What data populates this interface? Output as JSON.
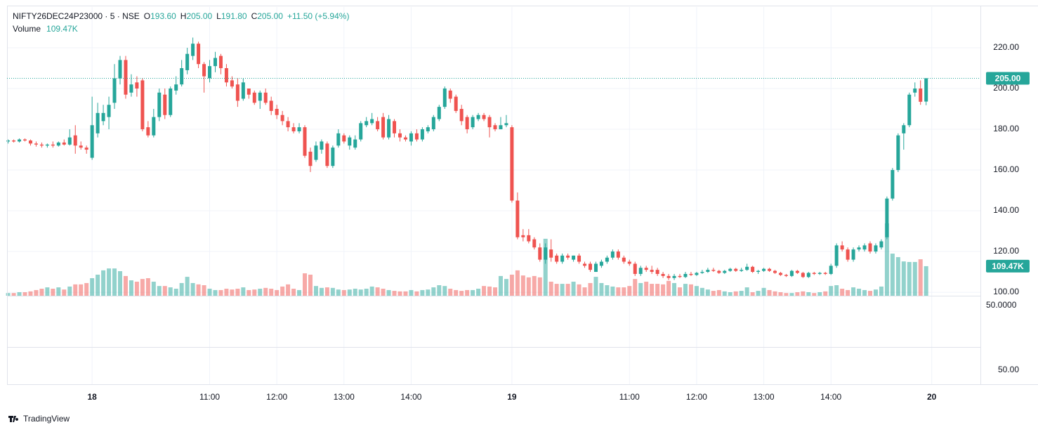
{
  "chart_data": {
    "type": "candlestick",
    "header": {
      "symbol": "NIFTY26DEC24P23000 · 5 · NSE",
      "ohlc_keys": [
        "O",
        "H",
        "L",
        "C"
      ],
      "ohlc_values": [
        "193.60",
        "205.00",
        "191.80",
        "205.00"
      ],
      "change": "+11.50 (+5.94%)",
      "volume_title": "Volume",
      "volume_label": "109.47K"
    },
    "up_color": "#26a69a",
    "down_color": "#ef5350",
    "grid": true,
    "ylim": [
      98.3,
      240
    ],
    "yticks": [
      {
        "value": 100,
        "label": "100.00"
      },
      {
        "value": 120,
        "label": "120.00"
      },
      {
        "value": 140,
        "label": "140.00"
      },
      {
        "value": 160,
        "label": "160.00"
      },
      {
        "value": 180,
        "label": "180.00"
      },
      {
        "value": 200,
        "label": "200.00"
      },
      {
        "value": 220,
        "label": "220.00"
      }
    ],
    "last_price": {
      "value": 205,
      "label": "205.00"
    },
    "xlim": [
      -0.2,
      173.7
    ],
    "xticks": [
      {
        "value": 15,
        "label": "18"
      },
      {
        "value": 36,
        "label": "11:00"
      },
      {
        "value": 48,
        "label": "12:00"
      },
      {
        "value": 60,
        "label": "13:00"
      },
      {
        "value": 72,
        "label": "14:00"
      },
      {
        "value": 90,
        "label": "19"
      },
      {
        "value": 111,
        "label": "11:00"
      },
      {
        "value": 123,
        "label": "12:00"
      },
      {
        "value": 135,
        "label": "13:00"
      },
      {
        "value": 147,
        "label": "14:00"
      },
      {
        "value": 165,
        "label": "20"
      }
    ],
    "pane_labels": [
      "50.0000",
      "50.00"
    ],
    "brand": "TradingView",
    "candles": [
      [
        174,
        175,
        173,
        174.5,
        10
      ],
      [
        174.5,
        175,
        173.5,
        174,
        10
      ],
      [
        174,
        175.5,
        173.5,
        175,
        13
      ],
      [
        175,
        175.5,
        174,
        174.5,
        13
      ],
      [
        174.5,
        175,
        172,
        173,
        16
      ],
      [
        173,
        174,
        171.5,
        172.5,
        21
      ],
      [
        172.5,
        173.5,
        171,
        172,
        26
      ],
      [
        172,
        173,
        171,
        172.5,
        31
      ],
      [
        172.5,
        174,
        171,
        172,
        26
      ],
      [
        172,
        174,
        171.5,
        173.5,
        31
      ],
      [
        173.5,
        175,
        172,
        172.5,
        23
      ],
      [
        172.5,
        180,
        172,
        176,
        34
      ],
      [
        177,
        182,
        168,
        172,
        42
      ],
      [
        172,
        174,
        170,
        171,
        42
      ],
      [
        171,
        172,
        168,
        170,
        47
      ],
      [
        166,
        196,
        165,
        182,
        65
      ],
      [
        178,
        193,
        176,
        188,
        78
      ],
      [
        184,
        192,
        182,
        188,
        94
      ],
      [
        186,
        196,
        180,
        192,
        101
      ],
      [
        193,
        212,
        190,
        205,
        101
      ],
      [
        205,
        216,
        202,
        214,
        91
      ],
      [
        214,
        216,
        195,
        197,
        73
      ],
      [
        198,
        207,
        196,
        202,
        57
      ],
      [
        203,
        206,
        196,
        200,
        52
      ],
      [
        204,
        205,
        179,
        180,
        62
      ],
      [
        181,
        184,
        176,
        177,
        65
      ],
      [
        177,
        190,
        176,
        186,
        52
      ],
      [
        186,
        200,
        184,
        198,
        36
      ],
      [
        197,
        200,
        185,
        187,
        36
      ],
      [
        187,
        201,
        186,
        200,
        31
      ],
      [
        199,
        206,
        197,
        202,
        26
      ],
      [
        202,
        214,
        201,
        210,
        47
      ],
      [
        209,
        220,
        207,
        217,
        70
      ],
      [
        216,
        225,
        214,
        222,
        47
      ],
      [
        222,
        223,
        210,
        212,
        42
      ],
      [
        212,
        213,
        198,
        206,
        39
      ],
      [
        205,
        214,
        203,
        211,
        26
      ],
      [
        211,
        218,
        208,
        215,
        21
      ],
      [
        216,
        217,
        207,
        210,
        21
      ],
      [
        210,
        212,
        201,
        203,
        26
      ],
      [
        204,
        206,
        200,
        201,
        23
      ],
      [
        202,
        205,
        191,
        194,
        26
      ],
      [
        195,
        205,
        194,
        203,
        31
      ],
      [
        200,
        200,
        195,
        197,
        21
      ],
      [
        198,
        199,
        192,
        193,
        23
      ],
      [
        194,
        199,
        190,
        198,
        26
      ],
      [
        198,
        200,
        192,
        193,
        29
      ],
      [
        194,
        196,
        187,
        189,
        26
      ],
      [
        190,
        192,
        185,
        187,
        21
      ],
      [
        187,
        189,
        182,
        184,
        34
      ],
      [
        184,
        186,
        179,
        181,
        42
      ],
      [
        181,
        183,
        178,
        179,
        26
      ],
      [
        179,
        183,
        178,
        181,
        21
      ],
      [
        181,
        182,
        166,
        167,
        83
      ],
      [
        169,
        171,
        159,
        162,
        78
      ],
      [
        165,
        174,
        164,
        172,
        36
      ],
      [
        170,
        175,
        168,
        174,
        29
      ],
      [
        173,
        174,
        161,
        162,
        31
      ],
      [
        162,
        172,
        161,
        171,
        29
      ],
      [
        172,
        180,
        171,
        178,
        23
      ],
      [
        177,
        178,
        173,
        174,
        21
      ],
      [
        172,
        177,
        170,
        176,
        23
      ],
      [
        171,
        177,
        170,
        175,
        26
      ],
      [
        175,
        184,
        174,
        183,
        23
      ],
      [
        182,
        186,
        181,
        184,
        26
      ],
      [
        183,
        188,
        182,
        185,
        34
      ],
      [
        184,
        186,
        179,
        180,
        31
      ],
      [
        186,
        188,
        175,
        176,
        26
      ],
      [
        176,
        187,
        175,
        185,
        21
      ],
      [
        184,
        185,
        176,
        178,
        18
      ],
      [
        178,
        180,
        174,
        176,
        16
      ],
      [
        176,
        177,
        174,
        175,
        16
      ],
      [
        174,
        179,
        172,
        178,
        21
      ],
      [
        178,
        180,
        174,
        175,
        16
      ],
      [
        175,
        181,
        174,
        180,
        21
      ],
      [
        179,
        182,
        178,
        181,
        23
      ],
      [
        180,
        187,
        179,
        186,
        31
      ],
      [
        185,
        192,
        184,
        191,
        39
      ],
      [
        191,
        201,
        190,
        200,
        36
      ],
      [
        199,
        200,
        193,
        195,
        26
      ],
      [
        196,
        197,
        188,
        189,
        21
      ],
      [
        190,
        192,
        182,
        184,
        18
      ],
      [
        186,
        187,
        178,
        180,
        21
      ],
      [
        181,
        187,
        180,
        186,
        21
      ],
      [
        185,
        188,
        184,
        187,
        26
      ],
      [
        187,
        188,
        184,
        185,
        36
      ],
      [
        186,
        187,
        176,
        181,
        34
      ],
      [
        182,
        183,
        179,
        180,
        31
      ],
      [
        180,
        186,
        180,
        182,
        73
      ],
      [
        182,
        187,
        181,
        183,
        62
      ],
      [
        181,
        182,
        144,
        145,
        78
      ],
      [
        145,
        149,
        126,
        127,
        94
      ],
      [
        128,
        131,
        125,
        127,
        75
      ],
      [
        128,
        131,
        124,
        125,
        68
      ],
      [
        126,
        127,
        121,
        122,
        73
      ],
      [
        122,
        124,
        115,
        116,
        68
      ],
      [
        116,
        124,
        114,
        122,
        211
      ],
      [
        121,
        126,
        115,
        117,
        52
      ],
      [
        118,
        119,
        114,
        115,
        44
      ],
      [
        115,
        119,
        114,
        118,
        44
      ],
      [
        118,
        119,
        116,
        117,
        44
      ],
      [
        116,
        118,
        115,
        118,
        52
      ],
      [
        118,
        119,
        114,
        115,
        42
      ],
      [
        114,
        115,
        112,
        113,
        31
      ],
      [
        114,
        115,
        110,
        111,
        47
      ],
      [
        110,
        115,
        110,
        114,
        70
      ],
      [
        113,
        116,
        112,
        115,
        47
      ],
      [
        115,
        118,
        114,
        117,
        39
      ],
      [
        117,
        121,
        116,
        120,
        34
      ],
      [
        120,
        121,
        116,
        117,
        31
      ],
      [
        117,
        118,
        114,
        115,
        31
      ],
      [
        115,
        116,
        113,
        114,
        36
      ],
      [
        114,
        115,
        108,
        109,
        62
      ],
      [
        109,
        113,
        108,
        112,
        47
      ],
      [
        112,
        113,
        110,
        111,
        52
      ],
      [
        111,
        113,
        109,
        110,
        44
      ],
      [
        111,
        112,
        108,
        109,
        44
      ],
      [
        109,
        110,
        107,
        108,
        42
      ],
      [
        108,
        109,
        106,
        107,
        55
      ],
      [
        107,
        109,
        106,
        108,
        47
      ],
      [
        108,
        109,
        107,
        107.5,
        31
      ],
      [
        107.5,
        110,
        107,
        109,
        44
      ],
      [
        109,
        110,
        108,
        108.5,
        42
      ],
      [
        108.5,
        110,
        108,
        109.5,
        36
      ],
      [
        109.5,
        111,
        109,
        110,
        29
      ],
      [
        110,
        112,
        109.5,
        111,
        23
      ],
      [
        111,
        112,
        110,
        110.5,
        18
      ],
      [
        110.5,
        111,
        109,
        109.5,
        21
      ],
      [
        109.5,
        111,
        109,
        110.5,
        16
      ],
      [
        110.5,
        112,
        110,
        111.5,
        13
      ],
      [
        111.5,
        112,
        110,
        110.5,
        16
      ],
      [
        110.5,
        112,
        110,
        111,
        18
      ],
      [
        111,
        114,
        110.5,
        112.5,
        31
      ],
      [
        112.5,
        113,
        109.5,
        110,
        13
      ],
      [
        110,
        111,
        109,
        110.5,
        18
      ],
      [
        110.5,
        112,
        110,
        111.5,
        29
      ],
      [
        111.5,
        112,
        110,
        110.5,
        21
      ],
      [
        110.5,
        111,
        109,
        109.5,
        16
      ],
      [
        109.5,
        110,
        108,
        108.5,
        13
      ],
      [
        108.5,
        109,
        107.5,
        108,
        10
      ],
      [
        108,
        111,
        107.5,
        110.5,
        10
      ],
      [
        110.5,
        111,
        109,
        109.5,
        13
      ],
      [
        109.5,
        110,
        107,
        107.5,
        16
      ],
      [
        107.5,
        110,
        107,
        109.5,
        13
      ],
      [
        109.5,
        110,
        108.5,
        109,
        10
      ],
      [
        109,
        110,
        108.5,
        109.5,
        13
      ],
      [
        109.5,
        110,
        108.5,
        109,
        16
      ],
      [
        109,
        114,
        108.5,
        113,
        36
      ],
      [
        113,
        124,
        112,
        123,
        39
      ],
      [
        123,
        125,
        120,
        121,
        26
      ],
      [
        121,
        122,
        115,
        116,
        21
      ],
      [
        116,
        122,
        115,
        121,
        31
      ],
      [
        121,
        123,
        120,
        122,
        26
      ],
      [
        121,
        124,
        120,
        123,
        21
      ],
      [
        124,
        125,
        119,
        120,
        18
      ],
      [
        120,
        124,
        119,
        123,
        23
      ],
      [
        122,
        126,
        121,
        125,
        34
      ],
      [
        127,
        147,
        126,
        146,
        268
      ],
      [
        146,
        161,
        145,
        160,
        156
      ],
      [
        160,
        178,
        159,
        177,
        143
      ],
      [
        178,
        183,
        170,
        182,
        127
      ],
      [
        182,
        198,
        181,
        197,
        125
      ],
      [
        198,
        203,
        196,
        200,
        125
      ],
      [
        200,
        204,
        192,
        193.5,
        135
      ],
      [
        193.6,
        205,
        191.8,
        205,
        109.47
      ]
    ]
  }
}
